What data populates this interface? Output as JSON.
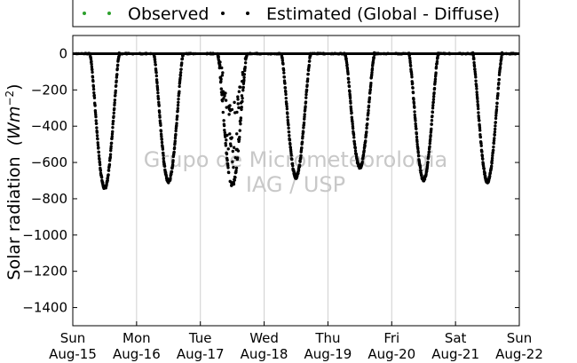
{
  "chart_data": {
    "type": "scatter",
    "title": "",
    "ylabel": "Solar radiation",
    "ylabel_unit_base": "(Wm",
    "ylabel_unit_exp": "−2",
    "ylabel_unit_close": ")",
    "ylim": [
      -1500,
      100
    ],
    "xlim": [
      0,
      7
    ],
    "y_ticks": [
      0,
      -200,
      -400,
      -600,
      -800,
      -1000,
      -1200,
      -1400
    ],
    "x_ticks": [
      {
        "day": "Sun",
        "date": "Aug-15"
      },
      {
        "day": "Mon",
        "date": "Aug-16"
      },
      {
        "day": "Tue",
        "date": "Aug-17"
      },
      {
        "day": "Wed",
        "date": "Aug-18"
      },
      {
        "day": "Thu",
        "date": "Aug-19"
      },
      {
        "day": "Fri",
        "date": "Aug-20"
      },
      {
        "day": "Sat",
        "date": "Aug-21"
      },
      {
        "day": "Sun",
        "date": "Aug-22"
      }
    ],
    "grid": "vertical",
    "legend_position": "top",
    "series": [
      {
        "name": "Observed",
        "color": "#2ca02c",
        "points": []
      },
      {
        "name": "Estimated (Global - Diffuse)",
        "color": "#000000",
        "daily_minimum": [
          {
            "day_offset": 0.5,
            "min": -740
          },
          {
            "day_offset": 1.5,
            "min": -705
          },
          {
            "day_offset": 2.5,
            "min": -725
          },
          {
            "day_offset": 3.5,
            "min": -680
          },
          {
            "day_offset": 4.5,
            "min": -625
          },
          {
            "day_offset": 5.5,
            "min": -695
          },
          {
            "day_offset": 6.5,
            "min": -705
          }
        ]
      }
    ],
    "watermark": [
      "Grupo de Micrometeorologia",
      "IAG / USP"
    ]
  }
}
